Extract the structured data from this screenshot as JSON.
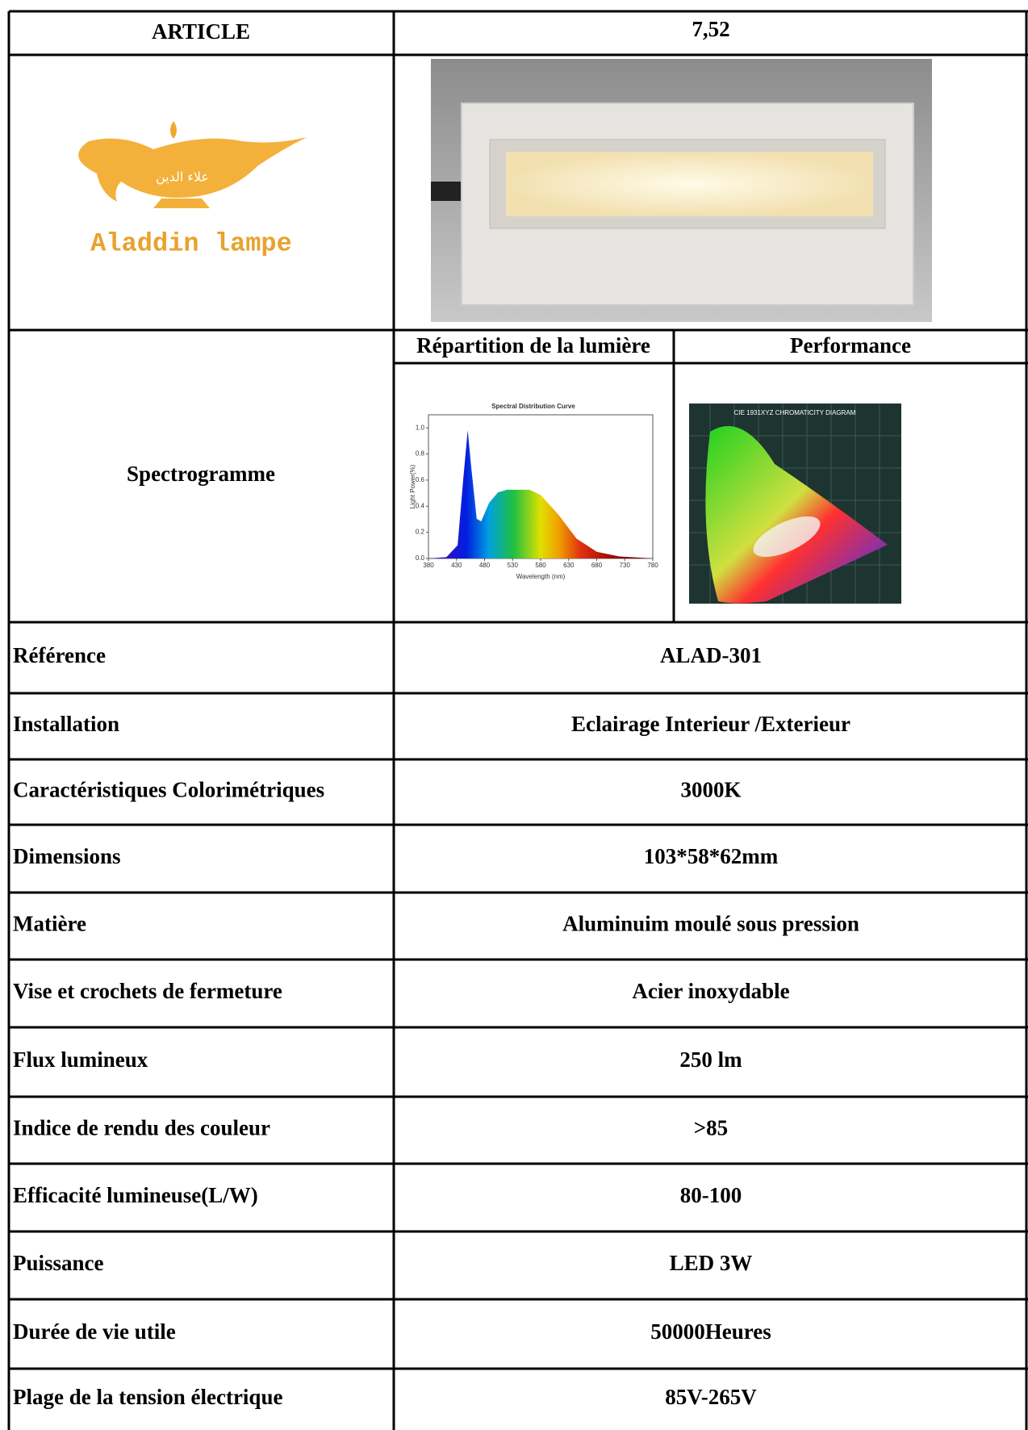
{
  "header": {
    "label": "ARTICLE",
    "value": "7,52"
  },
  "logo": {
    "arabic": "علاء الدين",
    "name": "Aladdin lampe"
  },
  "spectrogram": {
    "label": "Spectrogramme",
    "left_heading": "Répartition de la lumière",
    "right_heading": "Performance",
    "spectrum": {
      "title": "Spectral Distribution Curve",
      "xlabel": "Wavelength (nm)",
      "ylabel": "Light Power(%)",
      "xlim": [
        380,
        780
      ],
      "ylim": [
        0,
        1.1
      ],
      "xticks": [
        380,
        430,
        480,
        530,
        580,
        630,
        680,
        730,
        780
      ],
      "yticks": [
        {
          "value": 0,
          "label": "0.0"
        },
        {
          "value": 0.2,
          "label": "0.2"
        },
        {
          "value": 0.4,
          "label": "0.4"
        },
        {
          "value": 0.6,
          "label": "0.6"
        },
        {
          "value": 0.8,
          "label": "0.8"
        },
        {
          "value": 1,
          "label": "1.0"
        }
      ]
    },
    "chromaticity": {
      "title": "CIE 1931XYZ CHROMATICITY DIAGRAM"
    }
  },
  "table": {
    "rows": [
      [
        "Référence",
        "ALAD-301"
      ],
      [
        "Installation",
        "Eclairage Interieur /Exterieur"
      ],
      [
        "Caractéristiques Colorimétriques",
        "3000K"
      ],
      [
        "Dimensions",
        "103*58*62mm"
      ],
      [
        "Matière",
        "Aluminuim moulé sous pression"
      ],
      [
        "Vise et crochets de fermeture",
        "Acier inoxydable"
      ],
      [
        "Flux lumineux",
        "250 lm"
      ],
      [
        "Indice de rendu des couleur",
        ">85"
      ],
      [
        "Efficacité lumineuse(L/W)",
        "80-100"
      ],
      [
        "Puissance",
        "LED 3W"
      ],
      [
        "Durée de vie utile",
        "50000Heures"
      ],
      [
        "Plage de la tension électrique",
        "85V-265V"
      ]
    ]
  }
}
